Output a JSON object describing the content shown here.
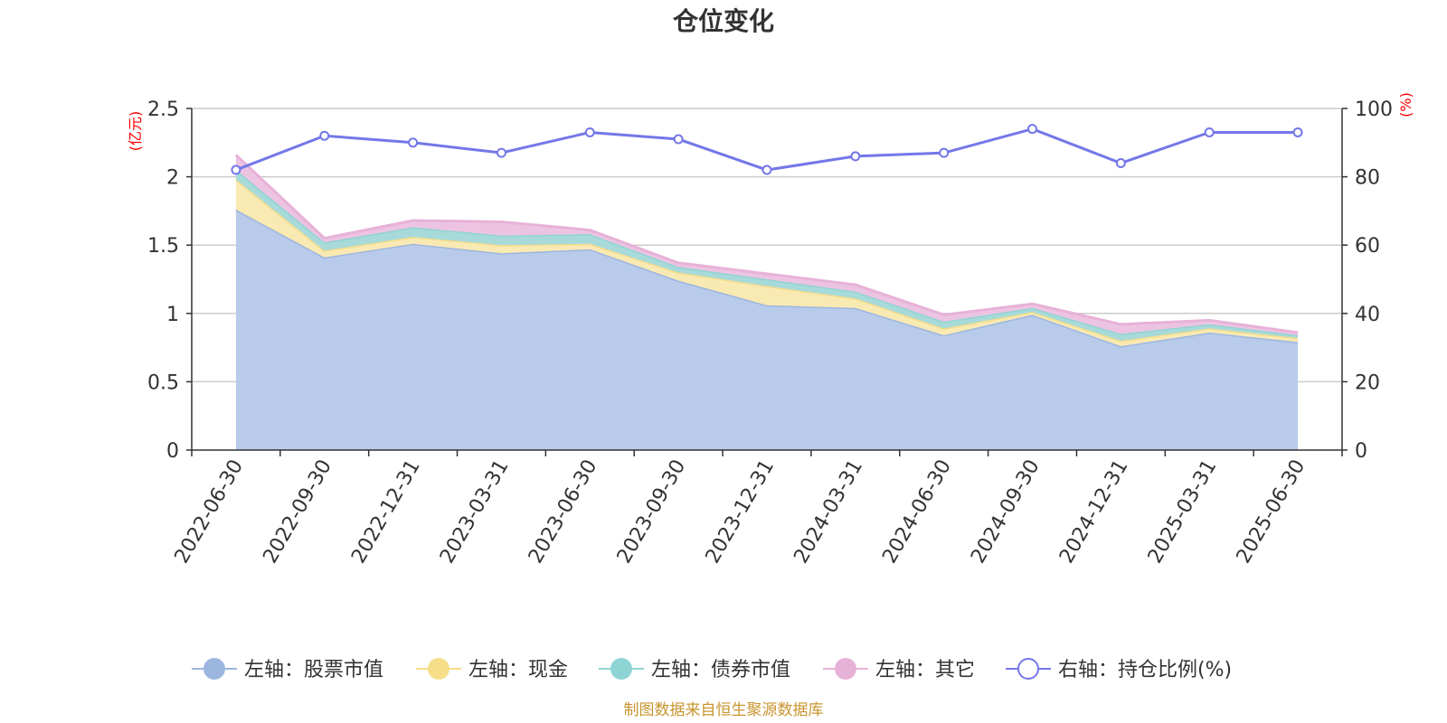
{
  "chart_data": {
    "type": "area",
    "title": "仓位变化",
    "x": [
      "2022-06-30",
      "2022-09-30",
      "2022-12-31",
      "2023-03-31",
      "2023-06-30",
      "2023-09-30",
      "2023-12-31",
      "2024-03-31",
      "2024-06-30",
      "2024-09-30",
      "2024-12-31",
      "2025-03-31",
      "2025-06-30"
    ],
    "left_axis": {
      "unit": "(亿元)",
      "ylim": [
        0,
        2.5
      ],
      "ticks": [
        "0",
        "0.5",
        "1",
        "1.5",
        "2",
        "2.5"
      ]
    },
    "right_axis": {
      "unit": "(%)",
      "ylim": [
        0,
        100
      ],
      "ticks": [
        "0",
        "20",
        "40",
        "60",
        "80",
        "100"
      ]
    },
    "stacked_series": [
      {
        "name": "左轴：股票市值",
        "axis": "left",
        "color": "#9db6e0",
        "fill": "#b8cbea",
        "values": [
          1.76,
          1.41,
          1.51,
          1.44,
          1.47,
          1.24,
          1.06,
          1.04,
          0.84,
          0.99,
          0.76,
          0.86,
          0.79
        ]
      },
      {
        "name": "左轴：现金",
        "axis": "left",
        "color": "#f5dd8a",
        "fill": "#f9e9b3",
        "values": [
          0.22,
          0.05,
          0.05,
          0.06,
          0.04,
          0.06,
          0.14,
          0.07,
          0.05,
          0.02,
          0.04,
          0.03,
          0.03
        ]
      },
      {
        "name": "左轴：债券市值",
        "axis": "left",
        "color": "#8fd4d4",
        "fill": "#a8dada",
        "values": [
          0.07,
          0.06,
          0.07,
          0.07,
          0.07,
          0.04,
          0.05,
          0.05,
          0.05,
          0.03,
          0.05,
          0.03,
          0.02
        ]
      },
      {
        "name": "左轴：其它",
        "axis": "left",
        "color": "#e7b2d8",
        "fill": "#ecc4e2",
        "values": [
          0.11,
          0.03,
          0.05,
          0.1,
          0.03,
          0.03,
          0.04,
          0.05,
          0.05,
          0.03,
          0.07,
          0.03,
          0.02
        ]
      }
    ],
    "line_series": {
      "name": "右轴：持仓比例(%)",
      "axis": "right",
      "color": "#7477e8",
      "values": [
        82,
        92,
        90,
        87,
        93,
        91,
        82,
        86,
        87,
        94,
        84,
        93,
        93
      ]
    },
    "grid": true,
    "legend": "bottom"
  },
  "source_note": "制图数据来自恒生聚源数据库"
}
